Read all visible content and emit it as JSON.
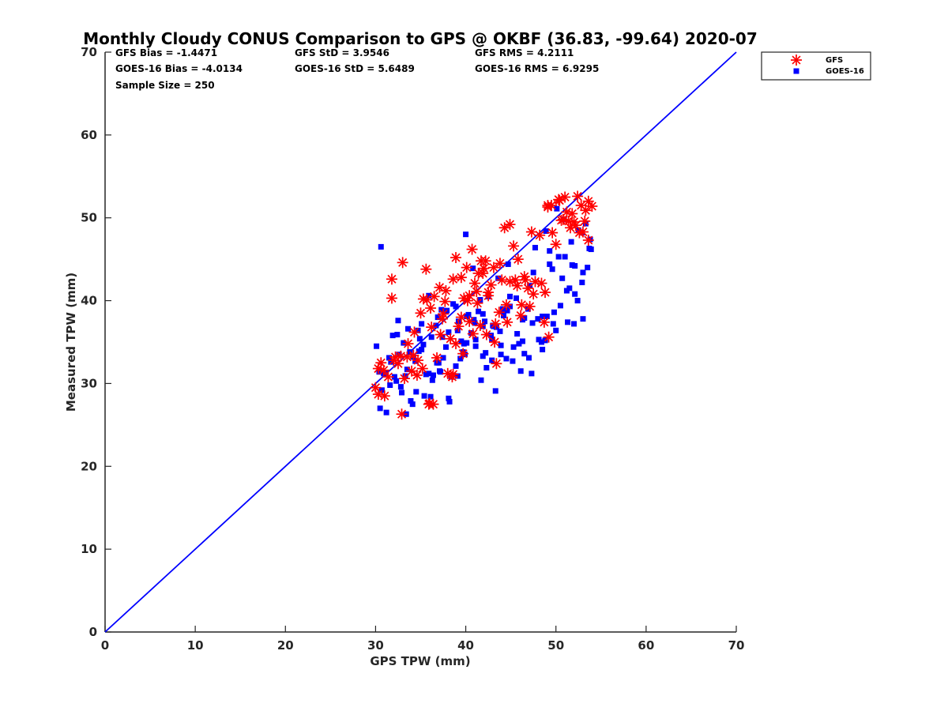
{
  "chart_data": {
    "type": "scatter",
    "title": "Monthly Cloudy CONUS Comparison to GPS @ OKBF (36.83, -99.64) 2020-07",
    "xlabel": "GPS TPW (mm)",
    "ylabel": "Measured TPW (mm)",
    "xlim": [
      0,
      70
    ],
    "ylim": [
      0,
      70
    ],
    "xticks": [
      0,
      10,
      20,
      30,
      40,
      50,
      60,
      70
    ],
    "yticks": [
      0,
      10,
      20,
      30,
      40,
      50,
      60,
      70
    ],
    "grid": false,
    "legend_position": "top-right (outside)",
    "reference_line": {
      "x": [
        0,
        70
      ],
      "y": [
        0,
        70
      ],
      "color": "#0000ff"
    },
    "stats": {
      "gfs_bias": "GFS Bias = -1.4471",
      "goes_bias": "GOES-16 Bias = -4.0134",
      "sample_size": "Sample Size = 250",
      "gfs_std": "GFS StD = 3.9546",
      "goes_std": "GOES-16 StD = 5.6489",
      "gfs_rms": "GFS RMS = 4.2111",
      "goes_rms": "GOES-16 RMS = 6.9295"
    },
    "series": [
      {
        "name": "GFS",
        "marker": "asterisk",
        "color": "#ff0000",
        "x": [
          30.0,
          30.3,
          30.6,
          31.0,
          31.4,
          31.8,
          32.2,
          32.5,
          32.9,
          33.2,
          33.6,
          34.0,
          34.3,
          34.7,
          35.0,
          35.3,
          35.6,
          35.9,
          36.2,
          36.5,
          36.8,
          37.1,
          37.4,
          37.7,
          38.0,
          38.3,
          38.6,
          38.9,
          39.2,
          39.5,
          39.8,
          40.1,
          40.4,
          40.7,
          41.0,
          41.3,
          41.6,
          41.9,
          42.2,
          42.5,
          42.8,
          43.1,
          43.4,
          43.7,
          44.0,
          44.3,
          44.6,
          44.9,
          45.3,
          45.7,
          46.1,
          46.5,
          46.9,
          47.3,
          47.7,
          48.2,
          48.7,
          49.1,
          49.5,
          50.0,
          50.4,
          50.8,
          51.2,
          51.6,
          52.0,
          52.4,
          52.8,
          53.2,
          53.6,
          54.0,
          31.8,
          33.0,
          33.5,
          35.7,
          36.0,
          37.8,
          38.6,
          39.5,
          40.2,
          41.4,
          42.5,
          43.2,
          44.5,
          45.5,
          46.6,
          47.5,
          48.8,
          49.1,
          50.3,
          51.4,
          52.6,
          53.3,
          32.0,
          34.6,
          36.4,
          38.5,
          40.8,
          42.0,
          43.8,
          45.8,
          47.1,
          49.6,
          51.8,
          53.0,
          36.1,
          37.2,
          38.9,
          39.7,
          41.2,
          30.3,
          30.9,
          32.8,
          34.2,
          35.2,
          37.5,
          40.4,
          42.3,
          44.9,
          49.2,
          51.0,
          52.2,
          53.6,
          41.7,
          43.3,
          46.2,
          48.4,
          50.6
        ],
        "y": [
          29.5,
          31.8,
          32.5,
          28.5,
          30.8,
          40.3,
          33.2,
          32.4,
          26.3,
          30.6,
          34.8,
          31.5,
          36.2,
          32.8,
          38.5,
          40.2,
          43.8,
          27.5,
          36.8,
          40.5,
          33.1,
          41.6,
          37.8,
          39.9,
          31.2,
          35.4,
          42.6,
          45.2,
          36.9,
          38.0,
          40.3,
          44.0,
          37.5,
          46.2,
          42.1,
          39.7,
          37.0,
          43.3,
          44.8,
          40.6,
          41.9,
          44.0,
          32.4,
          38.6,
          42.5,
          48.8,
          37.4,
          42.3,
          46.6,
          41.8,
          38.2,
          42.9,
          41.5,
          48.3,
          42.3,
          47.9,
          37.4,
          51.3,
          51.5,
          46.8,
          52.1,
          49.8,
          50.7,
          48.8,
          49.5,
          52.6,
          51.5,
          49.6,
          47.3,
          51.4,
          42.6,
          44.6,
          33.2,
          40.1,
          27.6,
          41.2,
          31.1,
          42.8,
          40.0,
          43.3,
          41.0,
          35.0,
          39.5,
          42.5,
          42.5,
          40.8,
          41.0,
          51.5,
          52.2,
          49.6,
          48.2,
          50.9,
          32.8,
          31.0,
          27.5,
          30.8,
          36.0,
          43.9,
          44.5,
          45.0,
          39.3,
          48.2,
          50.5,
          48.3,
          39.1,
          35.9,
          34.8,
          33.6,
          41.1,
          28.7,
          31.6,
          33.3,
          33.4,
          31.8,
          38.4,
          40.6,
          35.9,
          49.2,
          35.6,
          52.5,
          49.1,
          52.0,
          44.8,
          37.2,
          39.5,
          42.1,
          49.7
        ]
      },
      {
        "name": "GOES-16",
        "marker": "square",
        "color": "#0000ff",
        "x": [
          30.1,
          30.5,
          30.9,
          31.2,
          31.6,
          31.9,
          32.3,
          32.6,
          32.9,
          33.3,
          33.6,
          33.9,
          34.2,
          34.5,
          34.8,
          35.1,
          35.3,
          35.6,
          35.9,
          36.2,
          36.4,
          36.7,
          37.0,
          37.3,
          37.5,
          37.8,
          38.1,
          38.4,
          38.6,
          38.9,
          39.2,
          39.5,
          39.7,
          40.0,
          40.3,
          40.6,
          40.8,
          41.1,
          41.4,
          41.7,
          41.9,
          42.2,
          42.5,
          42.8,
          43.0,
          43.3,
          43.6,
          43.9,
          44.2,
          44.5,
          44.9,
          45.3,
          45.7,
          46.1,
          46.5,
          46.9,
          47.3,
          47.7,
          48.1,
          48.5,
          48.9,
          49.3,
          49.7,
          50.1,
          50.5,
          50.9,
          51.3,
          51.7,
          52.1,
          52.5,
          52.9,
          53.3,
          53.7,
          30.4,
          31.5,
          32.5,
          33.4,
          34.4,
          35.4,
          36.3,
          37.2,
          38.2,
          39.1,
          40.1,
          41.0,
          41.9,
          42.9,
          43.8,
          44.7,
          45.6,
          46.5,
          47.5,
          48.4,
          49.3,
          50.3,
          51.2,
          52.1,
          53.0,
          53.9,
          30.7,
          31.7,
          32.8,
          33.8,
          34.9,
          35.9,
          36.9,
          37.9,
          38.9,
          39.9,
          40.9,
          41.9,
          42.9,
          43.9,
          44.9,
          45.9,
          47.0,
          48.0,
          49.0,
          50.0,
          51.0,
          52.0,
          53.0,
          31.1,
          32.1,
          33.1,
          34.1,
          35.1,
          36.1,
          37.1,
          38.1,
          39.1,
          40.1,
          41.1,
          42.1,
          43.1,
          44.1,
          45.2,
          46.3,
          47.4,
          48.5,
          49.6,
          50.7,
          51.8,
          52.9,
          53.5,
          32.4,
          34.7,
          37.4,
          39.8,
          42.3,
          44.6,
          47.1,
          49.8,
          52.4,
          30.6,
          33.5,
          36.8,
          39.4,
          41.6,
          43.4,
          46.3,
          48.8,
          51.5,
          53.8
        ],
        "y": [
          34.5,
          27.0,
          31.2,
          26.5,
          29.8,
          35.8,
          30.3,
          33.5,
          28.9,
          30.9,
          36.6,
          27.9,
          33.2,
          29.0,
          33.9,
          37.2,
          34.7,
          31.1,
          40.6,
          35.6,
          31.0,
          37.0,
          32.5,
          38.9,
          33.1,
          34.4,
          36.2,
          30.8,
          39.6,
          32.1,
          37.5,
          35.1,
          33.8,
          48.0,
          38.3,
          36.1,
          43.9,
          34.5,
          38.7,
          30.4,
          36.9,
          33.7,
          40.5,
          35.8,
          37.0,
          29.1,
          42.7,
          34.6,
          38.2,
          33.0,
          39.3,
          34.4,
          36.0,
          31.5,
          33.6,
          39.0,
          31.2,
          46.4,
          35.3,
          38.1,
          48.4,
          44.4,
          37.2,
          51.1,
          39.4,
          49.8,
          37.4,
          47.1,
          44.2,
          48.5,
          48.2,
          49.3,
          46.3,
          31.4,
          33.1,
          37.6,
          26.3,
          32.7,
          28.5,
          30.4,
          31.4,
          27.8,
          36.4,
          34.9,
          37.3,
          33.3,
          35.3,
          36.3,
          44.4,
          40.3,
          37.9,
          43.4,
          35.0,
          46.0,
          45.3,
          41.2,
          40.8,
          37.8,
          46.2,
          29.2,
          32.6,
          29.6,
          33.8,
          35.4,
          31.2,
          38.0,
          38.8,
          39.3,
          33.5,
          37.7,
          38.4,
          32.8,
          33.5,
          40.5,
          34.8,
          33.1,
          37.8,
          38.1,
          36.4,
          45.3,
          37.2,
          43.4,
          31.2,
          30.8,
          34.9,
          27.5,
          34.1,
          28.4,
          31.5,
          28.2,
          30.9,
          38.1,
          35.3,
          37.5,
          36.9,
          39.0,
          32.7,
          35.1,
          37.3,
          34.1,
          43.8,
          42.7,
          44.3,
          42.2,
          44.0,
          35.9,
          36.4,
          35.6,
          34.8,
          31.9,
          38.8,
          41.8,
          38.6,
          40.0,
          46.5,
          31.7,
          32.5,
          33.0,
          40.1,
          36.8,
          37.7,
          35.2,
          41.5,
          47.4
        ]
      }
    ]
  }
}
